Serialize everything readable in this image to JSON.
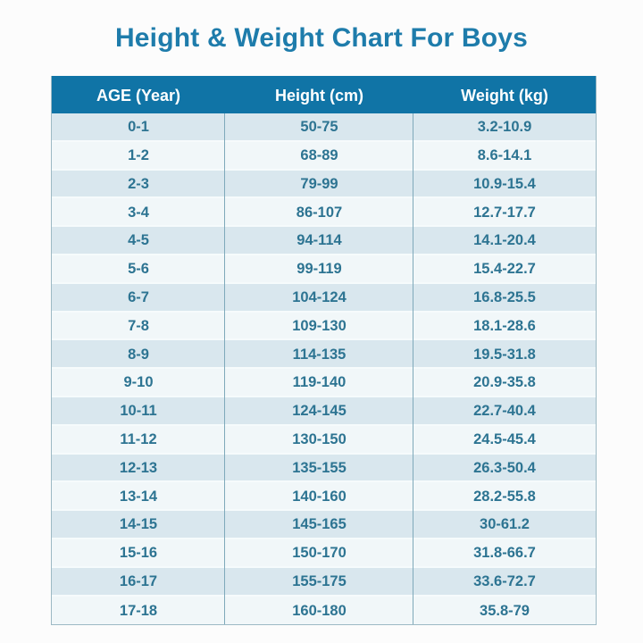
{
  "title": "Height & Weight Chart For Boys",
  "colors": {
    "title_text": "#1e7cab",
    "header_background": "#1074a6",
    "header_text": "#ffffff",
    "row_tinted": "#d9e7ee",
    "row_plain": "#f1f7f9",
    "cell_text": "#2d7492",
    "column_divider": "#7fa9ba",
    "table_border": "#9cb9c4"
  },
  "chart_data": {
    "type": "table",
    "title": "Height & Weight Chart For Boys",
    "columns": [
      "AGE (Year)",
      "Height (cm)",
      "Weight (kg)"
    ],
    "rows": [
      [
        "0-1",
        "50-75",
        "3.2-10.9"
      ],
      [
        "1-2",
        "68-89",
        "8.6-14.1"
      ],
      [
        "2-3",
        "79-99",
        "10.9-15.4"
      ],
      [
        "3-4",
        "86-107",
        "12.7-17.7"
      ],
      [
        "4-5",
        "94-114",
        "14.1-20.4"
      ],
      [
        "5-6",
        "99-119",
        "15.4-22.7"
      ],
      [
        "6-7",
        "104-124",
        "16.8-25.5"
      ],
      [
        "7-8",
        "109-130",
        "18.1-28.6"
      ],
      [
        "8-9",
        "114-135",
        "19.5-31.8"
      ],
      [
        "9-10",
        "119-140",
        "20.9-35.8"
      ],
      [
        "10-11",
        "124-145",
        "22.7-40.4"
      ],
      [
        "11-12",
        "130-150",
        "24.5-45.4"
      ],
      [
        "12-13",
        "135-155",
        "26.3-50.4"
      ],
      [
        "13-14",
        "140-160",
        "28.2-55.8"
      ],
      [
        "14-15",
        "145-165",
        "30-61.2"
      ],
      [
        "15-16",
        "150-170",
        "31.8-66.7"
      ],
      [
        "16-17",
        "155-175",
        "33.6-72.7"
      ],
      [
        "17-18",
        "160-180",
        "35.8-79"
      ]
    ]
  }
}
